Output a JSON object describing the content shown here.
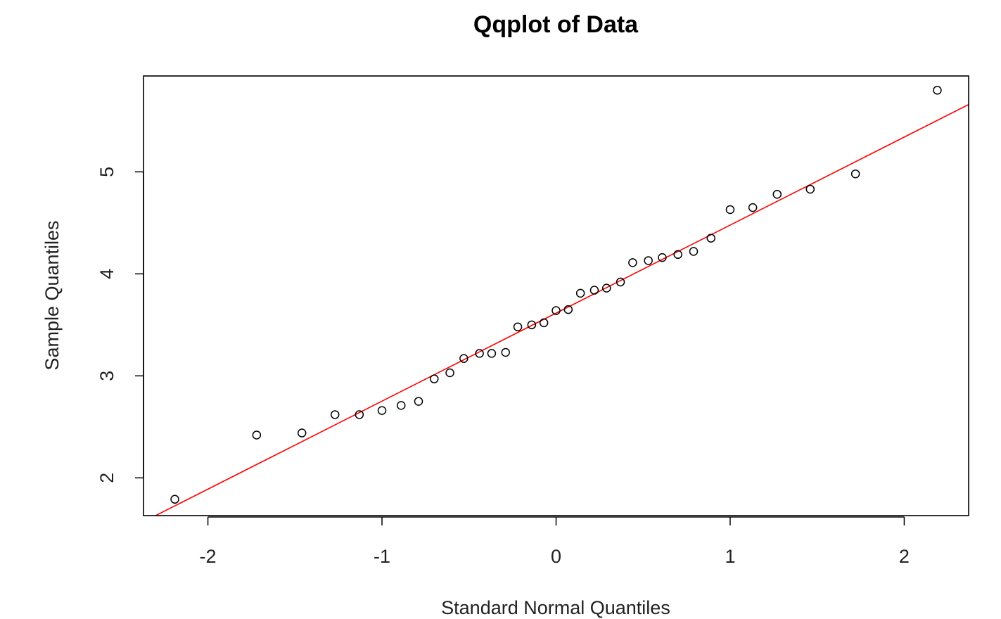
{
  "chart_data": {
    "type": "scatter",
    "title": "Qqplot of Data",
    "xlabel": "Standard Normal Quantiles",
    "ylabel": "Sample Quantiles",
    "xlim": [
      -2.37,
      2.37
    ],
    "ylim": [
      1.63,
      5.94
    ],
    "x_ticks": [
      -2,
      -1,
      0,
      1,
      2
    ],
    "x_tick_labels": [
      "-2",
      "-1",
      "0",
      "1",
      "2"
    ],
    "y_ticks": [
      2,
      3,
      4,
      5
    ],
    "y_tick_labels": [
      "2",
      "3",
      "4",
      "5"
    ],
    "grid": false,
    "point_style": "open-circle",
    "point_color": "#000000",
    "line_color": "#ff0000",
    "reference_line": {
      "x": [
        -2.37,
        2.37
      ],
      "y": [
        1.57,
        5.66
      ]
    },
    "points": [
      [
        -2.19,
        1.79
      ],
      [
        -1.72,
        2.42
      ],
      [
        -1.46,
        2.44
      ],
      [
        -1.27,
        2.62
      ],
      [
        -1.13,
        2.62
      ],
      [
        -1.0,
        2.66
      ],
      [
        -0.89,
        2.71
      ],
      [
        -0.79,
        2.75
      ],
      [
        -0.7,
        2.97
      ],
      [
        -0.61,
        3.03
      ],
      [
        -0.53,
        3.17
      ],
      [
        -0.44,
        3.22
      ],
      [
        -0.37,
        3.22
      ],
      [
        -0.29,
        3.23
      ],
      [
        -0.22,
        3.48
      ],
      [
        -0.14,
        3.5
      ],
      [
        -0.07,
        3.52
      ],
      [
        0.0,
        3.64
      ],
      [
        0.07,
        3.65
      ],
      [
        0.14,
        3.81
      ],
      [
        0.22,
        3.84
      ],
      [
        0.29,
        3.86
      ],
      [
        0.37,
        3.92
      ],
      [
        0.44,
        4.11
      ],
      [
        0.53,
        4.13
      ],
      [
        0.61,
        4.16
      ],
      [
        0.7,
        4.19
      ],
      [
        0.79,
        4.22
      ],
      [
        0.89,
        4.35
      ],
      [
        1.0,
        4.63
      ],
      [
        1.13,
        4.65
      ],
      [
        1.27,
        4.78
      ],
      [
        1.46,
        4.83
      ],
      [
        1.72,
        4.98
      ],
      [
        2.19,
        5.8
      ]
    ]
  }
}
